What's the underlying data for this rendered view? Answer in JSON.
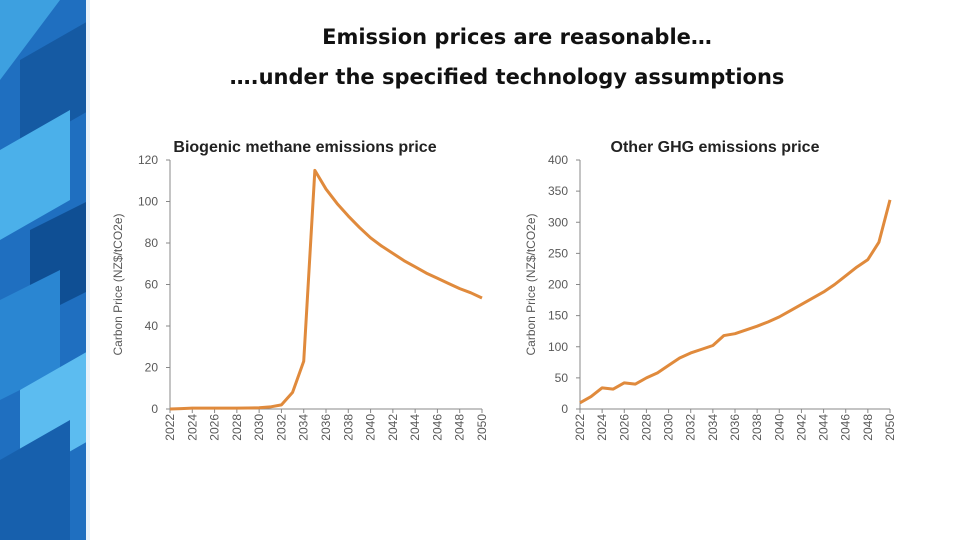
{
  "title": [
    "Emission prices are reasonable…",
    "….under the specified technology assumptions"
  ],
  "chart_data": [
    {
      "type": "line",
      "title": "Biogenic methane emissions price",
      "y_label": "Carbon Price  (NZ$/tCO2e)",
      "x": [
        2022,
        2023,
        2024,
        2025,
        2026,
        2027,
        2028,
        2029,
        2030,
        2031,
        2032,
        2033,
        2034,
        2035,
        2036,
        2037,
        2038,
        2039,
        2040,
        2041,
        2042,
        2043,
        2044,
        2045,
        2046,
        2047,
        2048,
        2049,
        2050
      ],
      "series": [
        {
          "color": "#e08a3c",
          "values": [
            0,
            0.2,
            0.4,
            0.4,
            0.4,
            0.4,
            0.4,
            0.5,
            0.6,
            1,
            2,
            8,
            23,
            115,
            106,
            99,
            93,
            87.5,
            82.5,
            78.5,
            75,
            71.5,
            68.5,
            65.5,
            63,
            60.5,
            58,
            56,
            53.5
          ]
        }
      ],
      "xlim": [
        2022,
        2050
      ],
      "xticks": [
        2022,
        2024,
        2026,
        2028,
        2030,
        2032,
        2034,
        2036,
        2038,
        2040,
        2042,
        2044,
        2046,
        2048,
        2050
      ],
      "ylim": [
        0,
        120
      ],
      "yticks": [
        0,
        20,
        40,
        60,
        80,
        100,
        120
      ]
    },
    {
      "type": "line",
      "title": "Other GHG emissions price",
      "y_label": "Carbon Price  (NZ$/tCO2e)",
      "x": [
        2022,
        2023,
        2024,
        2025,
        2026,
        2027,
        2028,
        2029,
        2030,
        2031,
        2032,
        2033,
        2034,
        2035,
        2036,
        2037,
        2038,
        2039,
        2040,
        2041,
        2042,
        2043,
        2044,
        2045,
        2046,
        2047,
        2048,
        2049,
        2050
      ],
      "series": [
        {
          "color": "#e08a3c",
          "values": [
            10,
            20,
            34,
            32,
            42,
            40,
            50,
            58,
            70,
            82,
            90,
            96,
            102,
            118,
            121,
            127,
            133,
            140,
            148,
            158,
            168,
            178,
            188,
            200,
            214,
            228,
            240,
            268,
            336
          ]
        }
      ],
      "xlim": [
        2022,
        2050
      ],
      "xticks": [
        2022,
        2024,
        2026,
        2028,
        2030,
        2032,
        2034,
        2036,
        2038,
        2040,
        2042,
        2044,
        2046,
        2048,
        2050
      ],
      "ylim": [
        0,
        400
      ],
      "yticks": [
        0,
        50,
        100,
        150,
        200,
        250,
        300,
        350,
        400
      ]
    }
  ]
}
